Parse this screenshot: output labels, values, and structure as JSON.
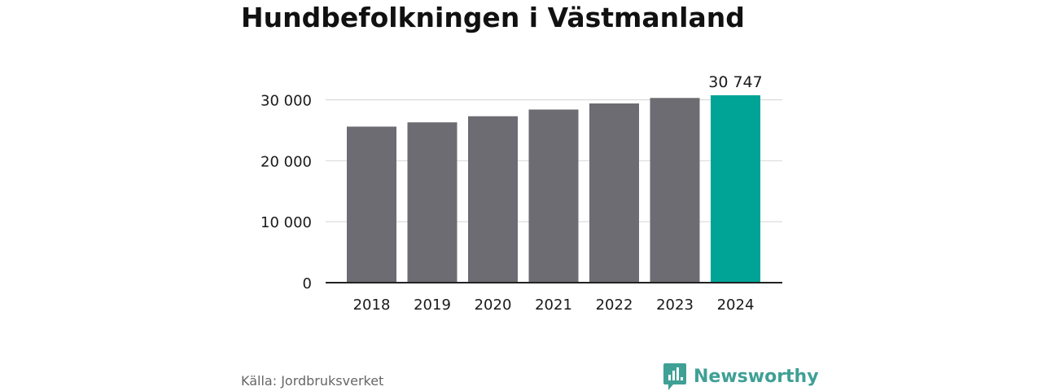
{
  "title": "Hundbefolkningen i Västmanland",
  "source": "Källa: Jordbruksverket",
  "brand": {
    "name": "Newsworthy",
    "icon": "newsworthy-logo-icon",
    "color": "#3fa095"
  },
  "colors": {
    "bar": "#6d6c72",
    "highlight": "#00a497",
    "grid": "#d9d9d9",
    "axis": "#222222",
    "text": "#1a1a1a"
  },
  "chart_data": {
    "type": "bar",
    "categories": [
      "2018",
      "2019",
      "2020",
      "2021",
      "2022",
      "2023",
      "2024"
    ],
    "values": [
      25600,
      26300,
      27300,
      28400,
      29400,
      30300,
      30747
    ],
    "highlight_index": 6,
    "value_labels": [
      "",
      "",
      "",
      "",
      "",
      "",
      "30 747"
    ],
    "ylim": [
      0,
      30000
    ],
    "yticks": [
      0,
      10000,
      20000,
      30000
    ],
    "ytick_labels": [
      "0",
      "10 000",
      "20 000",
      "30 000"
    ],
    "grid": true,
    "legend": "none",
    "xlabel": "",
    "ylabel": ""
  }
}
